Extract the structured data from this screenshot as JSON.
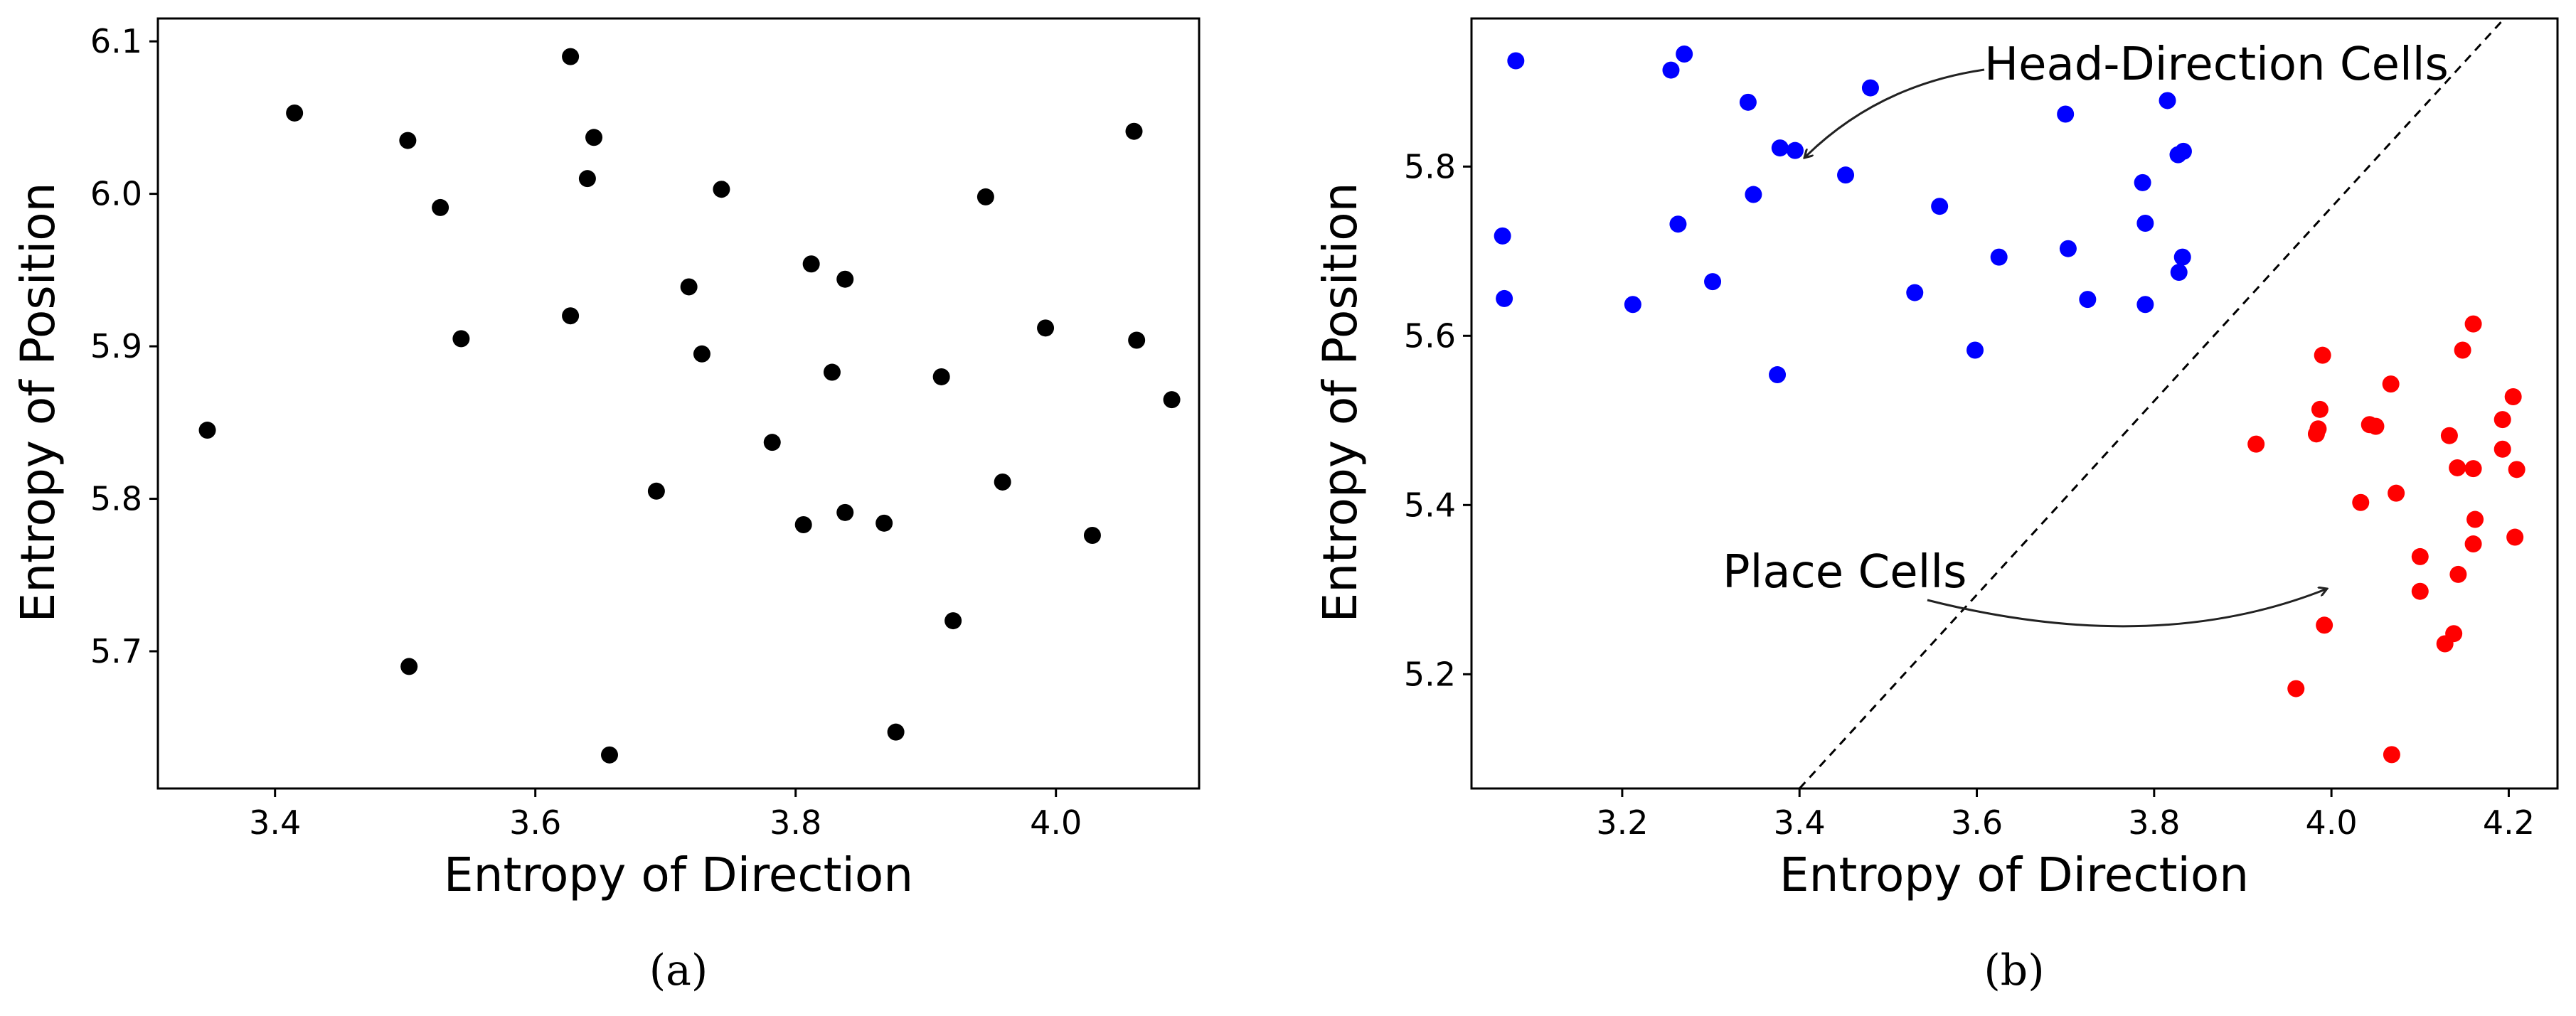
{
  "chart_data": [
    {
      "type": "scatter",
      "caption": "(a)",
      "xlabel": "Entropy of Direction",
      "ylabel": "Entropy of Position",
      "xlim": [
        3.31,
        4.11
      ],
      "ylim": [
        5.61,
        6.115
      ],
      "xticks": [
        3.4,
        3.6,
        3.8,
        4.0
      ],
      "yticks": [
        5.7,
        5.8,
        5.9,
        6.0,
        6.1
      ],
      "xtick_labels": [
        "3.4",
        "3.6",
        "3.8",
        "4.0"
      ],
      "ytick_labels": [
        "5.7",
        "5.8",
        "5.9",
        "6.0",
        "6.1"
      ],
      "grid": false,
      "series": [
        {
          "color": "#000000",
          "points": [
            [
              3.348,
              5.845
            ],
            [
              3.415,
              6.053
            ],
            [
              3.502,
              6.035
            ],
            [
              3.527,
              5.991
            ],
            [
              3.543,
              5.905
            ],
            [
              3.503,
              5.69
            ],
            [
              3.627,
              6.09
            ],
            [
              3.645,
              6.037
            ],
            [
              3.64,
              6.01
            ],
            [
              3.627,
              5.92
            ],
            [
              3.657,
              5.632
            ],
            [
              3.693,
              5.805
            ],
            [
              3.718,
              5.939
            ],
            [
              3.728,
              5.895
            ],
            [
              3.743,
              6.003
            ],
            [
              3.782,
              5.837
            ],
            [
              3.812,
              5.954
            ],
            [
              3.806,
              5.783
            ],
            [
              3.828,
              5.883
            ],
            [
              3.838,
              5.944
            ],
            [
              3.838,
              5.791
            ],
            [
              3.868,
              5.784
            ],
            [
              3.877,
              5.647
            ],
            [
              3.912,
              5.88
            ],
            [
              3.921,
              5.72
            ],
            [
              3.946,
              5.998
            ],
            [
              3.959,
              5.811
            ],
            [
              3.992,
              5.912
            ],
            [
              4.028,
              5.776
            ],
            [
              4.06,
              6.041
            ],
            [
              4.062,
              5.904
            ],
            [
              4.089,
              5.865
            ]
          ]
        }
      ]
    },
    {
      "type": "scatter",
      "caption": "(b)",
      "xlabel": "Entropy of Direction",
      "ylabel": "Entropy of Position",
      "xlim": [
        3.03,
        4.255
      ],
      "ylim": [
        5.065,
        5.975
      ],
      "xticks": [
        3.2,
        3.4,
        3.6,
        3.8,
        4.0,
        4.2
      ],
      "yticks": [
        5.2,
        5.4,
        5.6,
        5.8
      ],
      "xtick_labels": [
        "3.2",
        "3.4",
        "3.6",
        "3.8",
        "4.0",
        "4.2"
      ],
      "ytick_labels": [
        "5.2",
        "5.4",
        "5.6",
        "5.8"
      ],
      "grid": false,
      "divider": {
        "style": "dashed",
        "from": [
          3.4,
          5.065
        ],
        "to": [
          4.195,
          5.975
        ]
      },
      "annotations": [
        {
          "text": "Head-Direction Cells",
          "point_to": [
            3.39,
            5.81
          ]
        },
        {
          "text": "Place Cells",
          "point_to": [
            4.0,
            5.3
          ]
        }
      ],
      "series": [
        {
          "color": "#0000ff",
          "points": [
            [
              3.08,
              5.925
            ],
            [
              3.255,
              5.914
            ],
            [
              3.27,
              5.933
            ],
            [
              3.342,
              5.876
            ],
            [
              3.48,
              5.893
            ],
            [
              3.815,
              5.878
            ],
            [
              3.7,
              5.862
            ],
            [
              3.378,
              5.822
            ],
            [
              3.395,
              5.819
            ],
            [
              3.452,
              5.79
            ],
            [
              3.827,
              5.814
            ],
            [
              3.833,
              5.818
            ],
            [
              3.787,
              5.781
            ],
            [
              3.348,
              5.767
            ],
            [
              3.558,
              5.753
            ],
            [
              3.065,
              5.718
            ],
            [
              3.263,
              5.732
            ],
            [
              3.79,
              5.733
            ],
            [
              3.703,
              5.703
            ],
            [
              3.625,
              5.693
            ],
            [
              3.832,
              5.693
            ],
            [
              3.828,
              5.675
            ],
            [
              3.302,
              5.664
            ],
            [
              3.53,
              5.651
            ],
            [
              3.067,
              5.644
            ],
            [
              3.212,
              5.637
            ],
            [
              3.725,
              5.643
            ],
            [
              3.79,
              5.637
            ],
            [
              3.598,
              5.583
            ],
            [
              3.375,
              5.554
            ]
          ]
        },
        {
          "color": "#ff0000",
          "points": [
            [
              4.16,
              5.614
            ],
            [
              4.148,
              5.583
            ],
            [
              3.99,
              5.577
            ],
            [
              4.067,
              5.543
            ],
            [
              4.205,
              5.528
            ],
            [
              3.987,
              5.513
            ],
            [
              4.193,
              5.501
            ],
            [
              4.043,
              5.495
            ],
            [
              4.05,
              5.493
            ],
            [
              3.985,
              5.49
            ],
            [
              3.983,
              5.484
            ],
            [
              4.133,
              5.482
            ],
            [
              3.915,
              5.472
            ],
            [
              4.193,
              5.466
            ],
            [
              4.142,
              5.444
            ],
            [
              4.16,
              5.443
            ],
            [
              4.209,
              5.442
            ],
            [
              4.073,
              5.414
            ],
            [
              4.033,
              5.403
            ],
            [
              4.162,
              5.383
            ],
            [
              4.207,
              5.362
            ],
            [
              4.16,
              5.354
            ],
            [
              4.1,
              5.339
            ],
            [
              4.143,
              5.318
            ],
            [
              4.1,
              5.298
            ],
            [
              3.992,
              5.258
            ],
            [
              4.138,
              5.248
            ],
            [
              4.128,
              5.236
            ],
            [
              3.96,
              5.183
            ],
            [
              4.068,
              5.105
            ]
          ]
        }
      ]
    }
  ]
}
